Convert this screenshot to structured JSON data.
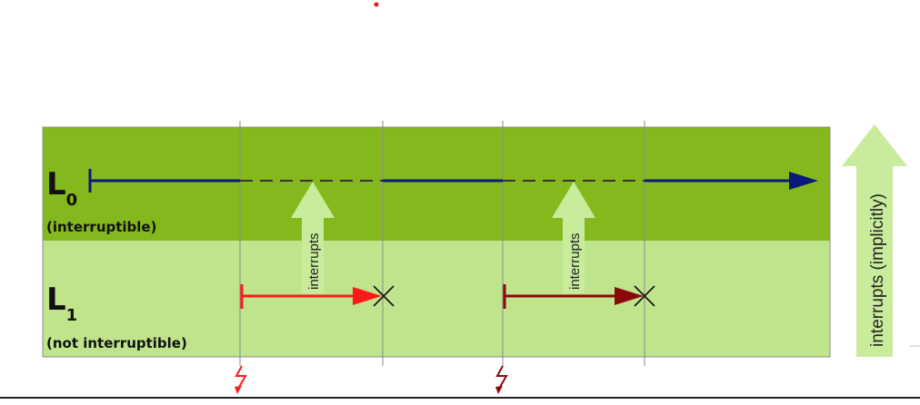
{
  "levels": [
    {
      "letter": "L",
      "subscript": "0",
      "note": "(interruptible)"
    },
    {
      "letter": "L",
      "subscript": "1",
      "note": "(not interruptible)"
    }
  ],
  "interrupt_labels": [
    "interrupts",
    "interrupts"
  ],
  "side_arrow_label": "interrupts (implicitly)",
  "colors": {
    "level0_band": "#85b81c",
    "level1_band": "#c0e48c",
    "arrow_fill": "#c8ec9c",
    "task_line": "#0a1a78",
    "interrupt1": "#ff1a1a",
    "interrupt2": "#8a0a0a",
    "dashed": "#333333",
    "guide": "#8a8a8a",
    "dot": "#e31b1b"
  },
  "icons": [
    "lightning-icon",
    "cross-icon"
  ]
}
